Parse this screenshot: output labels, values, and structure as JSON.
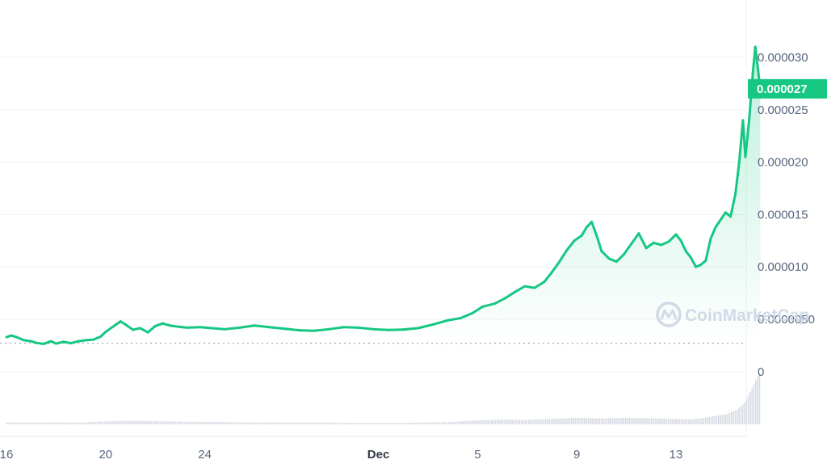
{
  "chart_data": {
    "type": "line",
    "x_ticks": [
      {
        "label": "16",
        "day": 16,
        "bold": false
      },
      {
        "label": "20",
        "day": 20,
        "bold": false
      },
      {
        "label": "24",
        "day": 24,
        "bold": false
      },
      {
        "label": "Dec",
        "day": 31,
        "bold": true
      },
      {
        "label": "5",
        "day": 35,
        "bold": false
      },
      {
        "label": "9",
        "day": 39,
        "bold": false
      },
      {
        "label": "13",
        "day": 43,
        "bold": false
      }
    ],
    "y_ticks": [
      {
        "label": "0.000030",
        "value": 3e-05
      },
      {
        "label": "0.000025",
        "value": 2.5e-05
      },
      {
        "label": "0.000020",
        "value": 2e-05
      },
      {
        "label": "0.000015",
        "value": 1.5e-05
      },
      {
        "label": "0.000010",
        "value": 1e-05
      },
      {
        "label": "0.0000050",
        "value": 5e-06
      }
    ],
    "volume_tick": {
      "label": "0"
    },
    "ylim": [
      2.5e-06,
      3.15e-05
    ],
    "reference_value": 2.7e-06,
    "current_price": {
      "label": "0.000027",
      "value": 2.7e-05
    },
    "series": [
      {
        "color": "#16c784",
        "below_reference_color": "#ea3943",
        "points": [
          [
            16.0,
            3.3e-06
          ],
          [
            16.2,
            3.45e-06
          ],
          [
            16.4,
            3.3e-06
          ],
          [
            16.7,
            3e-06
          ],
          [
            17.0,
            2.9e-06
          ],
          [
            17.2,
            2.75e-06
          ],
          [
            17.5,
            2.65e-06
          ],
          [
            17.8,
            2.9e-06
          ],
          [
            18.0,
            2.68e-06
          ],
          [
            18.3,
            2.85e-06
          ],
          [
            18.6,
            2.72e-06
          ],
          [
            18.9,
            2.9e-06
          ],
          [
            19.2,
            3e-06
          ],
          [
            19.5,
            3.05e-06
          ],
          [
            19.8,
            3.35e-06
          ],
          [
            20.0,
            3.8e-06
          ],
          [
            20.3,
            4.3e-06
          ],
          [
            20.6,
            4.8e-06
          ],
          [
            20.8,
            4.5e-06
          ],
          [
            21.1,
            4e-06
          ],
          [
            21.4,
            4.15e-06
          ],
          [
            21.7,
            3.75e-06
          ],
          [
            22.0,
            4.35e-06
          ],
          [
            22.3,
            4.6e-06
          ],
          [
            22.6,
            4.4e-06
          ],
          [
            22.9,
            4.3e-06
          ],
          [
            23.3,
            4.2e-06
          ],
          [
            23.8,
            4.25e-06
          ],
          [
            24.3,
            4.15e-06
          ],
          [
            24.8,
            4.05e-06
          ],
          [
            25.4,
            4.2e-06
          ],
          [
            26.0,
            4.4e-06
          ],
          [
            26.6,
            4.25e-06
          ],
          [
            27.2,
            4.1e-06
          ],
          [
            27.8,
            3.95e-06
          ],
          [
            28.4,
            3.9e-06
          ],
          [
            29.0,
            4.05e-06
          ],
          [
            29.6,
            4.25e-06
          ],
          [
            30.2,
            4.2e-06
          ],
          [
            30.8,
            4.05e-06
          ],
          [
            31.4,
            3.98e-06
          ],
          [
            32.0,
            4.02e-06
          ],
          [
            32.6,
            4.15e-06
          ],
          [
            33.2,
            4.5e-06
          ],
          [
            33.8,
            4.9e-06
          ],
          [
            34.3,
            5.1e-06
          ],
          [
            34.8,
            5.6e-06
          ],
          [
            35.2,
            6.2e-06
          ],
          [
            35.7,
            6.5e-06
          ],
          [
            36.1,
            7e-06
          ],
          [
            36.5,
            7.6e-06
          ],
          [
            36.9,
            8.15e-06
          ],
          [
            37.3,
            8e-06
          ],
          [
            37.7,
            8.6e-06
          ],
          [
            38.0,
            9.5e-06
          ],
          [
            38.3,
            1.05e-05
          ],
          [
            38.6,
            1.16e-05
          ],
          [
            38.9,
            1.25e-05
          ],
          [
            39.2,
            1.3e-05
          ],
          [
            39.4,
            1.38e-05
          ],
          [
            39.6,
            1.43e-05
          ],
          [
            39.8,
            1.3e-05
          ],
          [
            40.0,
            1.15e-05
          ],
          [
            40.3,
            1.08e-05
          ],
          [
            40.6,
            1.05e-05
          ],
          [
            40.9,
            1.12e-05
          ],
          [
            41.2,
            1.22e-05
          ],
          [
            41.5,
            1.32e-05
          ],
          [
            41.8,
            1.18e-05
          ],
          [
            42.1,
            1.23e-05
          ],
          [
            42.4,
            1.21e-05
          ],
          [
            42.7,
            1.24e-05
          ],
          [
            43.0,
            1.31e-05
          ],
          [
            43.2,
            1.25e-05
          ],
          [
            43.4,
            1.15e-05
          ],
          [
            43.6,
            1.09e-05
          ],
          [
            43.8,
            1e-05
          ],
          [
            44.0,
            1.02e-05
          ],
          [
            44.2,
            1.06e-05
          ],
          [
            44.4,
            1.27e-05
          ],
          [
            44.6,
            1.38e-05
          ],
          [
            44.8,
            1.45e-05
          ],
          [
            45.0,
            1.52e-05
          ],
          [
            45.2,
            1.48e-05
          ],
          [
            45.4,
            1.7e-05
          ],
          [
            45.55,
            2e-05
          ],
          [
            45.7,
            2.4e-05
          ],
          [
            45.8,
            2.05e-05
          ],
          [
            45.95,
            2.4e-05
          ],
          [
            46.1,
            2.85e-05
          ],
          [
            46.2,
            3.1e-05
          ],
          [
            46.3,
            2.9e-05
          ],
          [
            46.4,
            2.7e-05
          ]
        ]
      }
    ],
    "volume": [
      [
        16.0,
        0.8
      ],
      [
        17.0,
        0.7
      ],
      [
        18.0,
        0.8
      ],
      [
        19.0,
        0.7
      ],
      [
        20.0,
        1.2
      ],
      [
        21.0,
        1.4
      ],
      [
        22.0,
        1.3
      ],
      [
        23.0,
        1.1
      ],
      [
        24.0,
        1.0
      ],
      [
        25.0,
        0.9
      ],
      [
        26.0,
        0.8
      ],
      [
        27.0,
        0.8
      ],
      [
        28.0,
        0.7
      ],
      [
        29.0,
        0.7
      ],
      [
        30.0,
        0.6
      ],
      [
        31.0,
        0.6
      ],
      [
        32.0,
        0.6
      ],
      [
        33.0,
        0.8
      ],
      [
        34.0,
        1.0
      ],
      [
        35.0,
        1.6
      ],
      [
        36.0,
        1.9
      ],
      [
        37.0,
        1.8
      ],
      [
        38.0,
        2.2
      ],
      [
        39.0,
        2.6
      ],
      [
        40.0,
        2.4
      ],
      [
        41.0,
        2.6
      ],
      [
        42.0,
        2.4
      ],
      [
        43.0,
        2.2
      ],
      [
        43.5,
        2.0
      ],
      [
        44.0,
        2.4
      ],
      [
        44.5,
        3.2
      ],
      [
        45.0,
        4.0
      ],
      [
        45.5,
        6.0
      ],
      [
        45.8,
        9.0
      ],
      [
        46.0,
        13.0
      ],
      [
        46.2,
        17.0
      ],
      [
        46.4,
        21.0
      ]
    ],
    "grid": true,
    "watermark": "CoinMarketCap"
  }
}
